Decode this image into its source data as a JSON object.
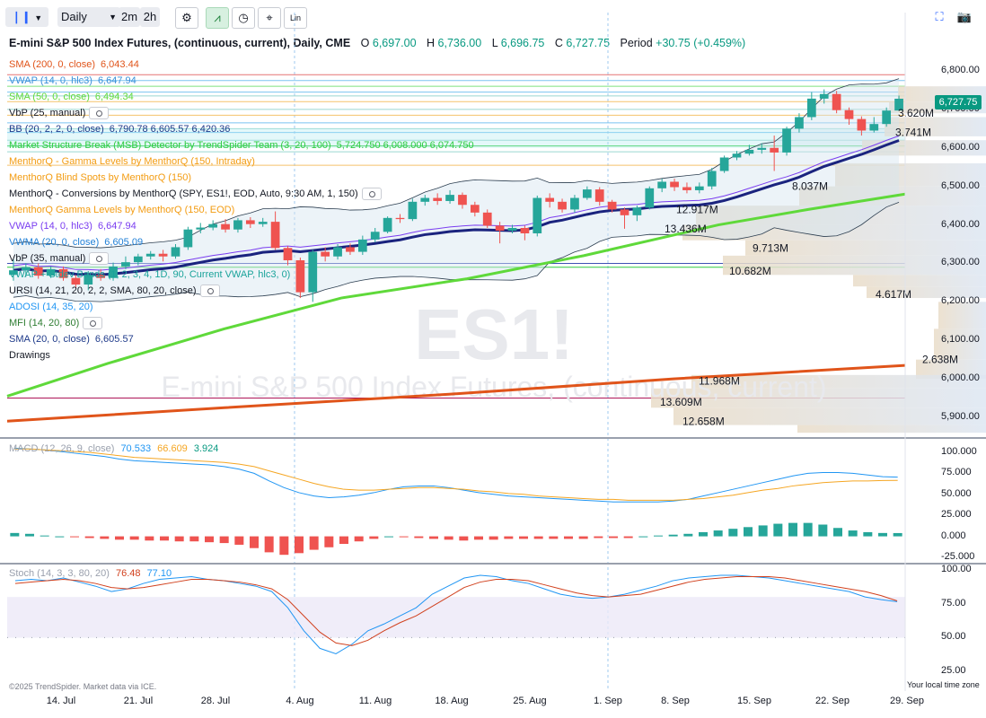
{
  "toolbar": {
    "interval": "Daily",
    "interval_2m": "2m",
    "interval_2h": "2h",
    "scale_label": "Lin"
  },
  "header": {
    "title": "E-mini S&P 500 Index Futures, (continuous, current), Daily, CME",
    "o_label": "O",
    "o_value": "6,697.00",
    "h_label": "H",
    "h_value": "6,736.00",
    "l_label": "L",
    "l_value": "6,696.75",
    "c_label": "C",
    "c_value": "6,727.75",
    "period_label": "Period",
    "period_value": "+30.75 (+0.459%)"
  },
  "indicators": [
    {
      "text": "SMA (200, 0, close)",
      "value": "6,043.44",
      "color": "#e0541a",
      "eye": false
    },
    {
      "text": "VWAP (14, 0, hlc3)",
      "value": "6,647.94",
      "color": "#3a8fd8",
      "eye": false
    },
    {
      "text": "SMA (50, 0, close)",
      "value": "6,494.34",
      "color": "#5fd93a",
      "eye": false
    },
    {
      "text": "VbP (25, manual)",
      "value": "",
      "color": "#131722",
      "eye": true
    },
    {
      "text": "BB (20, 2, 2, 0, close)",
      "value": "6,790.78 6,605.57 6,420.36",
      "color": "#1e3a8a",
      "eye": false
    },
    {
      "text": "Market Structure Break (MSB) Detector by TrendSpider Team (3, 20, 100)",
      "value": "5,724.750 6,008.000 6,074.750",
      "color": "#2ecc40",
      "eye": false
    },
    {
      "text": "MenthorQ - Gamma Levels by MenthorQ (150, Intraday)",
      "value": "",
      "color": "#f39c12",
      "eye": false
    },
    {
      "text": "MenthorQ Blind Spots by MenthorQ (150)",
      "value": "",
      "color": "#f39c12",
      "eye": false
    },
    {
      "text": "MenthorQ - Conversions by MenthorQ (SPY, ES1!, EOD, Auto, 9:30 AM, 1, 150)",
      "value": "",
      "color": "#131722",
      "eye": true
    },
    {
      "text": "MenthorQ Gamma Levels by MenthorQ (150, EOD)",
      "value": "",
      "color": "#f39c12",
      "eye": false
    },
    {
      "text": "VWAP (14, 0, hlc3)",
      "value": "6,647.94",
      "color": "#7a3df0",
      "eye": false
    },
    {
      "text": "VWMA (20, 0, close)",
      "value": "6,605.09",
      "color": "#1f7fd6",
      "eye": false
    },
    {
      "text": "VbP (35, manual)",
      "value": "",
      "color": "#131722",
      "eye": true
    },
    {
      "text": "VWAP + Stdev Bands (1, 2, 3, 4, 1D, 90, Current VWAP, hlc3, 0)",
      "value": "",
      "color": "#1aa39a",
      "eye": false
    },
    {
      "text": "URSI (14, 21, 20, 2, 2, SMA, 80, 20, close)",
      "value": "",
      "color": "#131722",
      "eye": true
    },
    {
      "text": "ADOSI (14, 35, 20)",
      "value": "",
      "color": "#2196f3",
      "eye": false
    },
    {
      "text": "MFI (14, 20, 80)",
      "value": "",
      "color": "#2e7d32",
      "eye": true
    },
    {
      "text": "SMA (20, 0, close)",
      "value": "6,605.57",
      "color": "#1e3a8a",
      "eye": false
    },
    {
      "text": "Drawings",
      "value": "",
      "color": "#131722",
      "eye": false
    }
  ],
  "watermark": {
    "symbol": "ES1!",
    "name": "E-mini S&P 500 Index Futures, (continuous, current)"
  },
  "price_axis": [
    "6,800.00",
    "6,700.00",
    "6,600.00",
    "6,500.00",
    "6,400.00",
    "6,300.00",
    "6,200.00",
    "6,100.00",
    "6,000.00",
    "5,900.00"
  ],
  "last_price": "6,727.75",
  "macd": {
    "label": "MACD (12, 26, 9, close)",
    "v1": "70.533",
    "v2": "66.609",
    "v3": "3.924",
    "axis": [
      "100.000",
      "75.000",
      "50.000",
      "25.000",
      "0.000",
      "-25.000"
    ]
  },
  "stoch": {
    "label": "Stoch (14, 3, 3, 80, 20)",
    "v1": "76.48",
    "v2": "77.10",
    "axis": [
      "100.00",
      "75.00",
      "50.00",
      "25.00"
    ]
  },
  "x_axis": [
    "14. Jul",
    "21. Jul",
    "28. Jul",
    "4. Aug",
    "11. Aug",
    "18. Aug",
    "25. Aug",
    "1. Sep",
    "8. Sep",
    "15. Sep",
    "22. Sep",
    "29. Sep"
  ],
  "footer": {
    "copyright": "©2025 TrendSpider. Market data via ICE.",
    "timezone": "Your local time zone"
  },
  "chart_data": {
    "type": "candlestick",
    "price_range": [
      5850,
      6830
    ],
    "candles": [
      {
        "o": 6270,
        "c": 6282,
        "h": 6310,
        "l": 6255
      },
      {
        "o": 6282,
        "c": 6290,
        "h": 6300,
        "l": 6265
      },
      {
        "o": 6290,
        "c": 6268,
        "h": 6300,
        "l": 6260
      },
      {
        "o": 6268,
        "c": 6285,
        "h": 6292,
        "l": 6262
      },
      {
        "o": 6285,
        "c": 6262,
        "h": 6292,
        "l": 6255
      },
      {
        "o": 6262,
        "c": 6245,
        "h": 6270,
        "l": 6235
      },
      {
        "o": 6245,
        "c": 6270,
        "h": 6280,
        "l": 6230
      },
      {
        "o": 6270,
        "c": 6262,
        "h": 6285,
        "l": 6255
      },
      {
        "o": 6262,
        "c": 6292,
        "h": 6302,
        "l": 6255
      },
      {
        "o": 6292,
        "c": 6303,
        "h": 6318,
        "l": 6285
      },
      {
        "o": 6303,
        "c": 6318,
        "h": 6325,
        "l": 6295
      },
      {
        "o": 6318,
        "c": 6325,
        "h": 6332,
        "l": 6310
      },
      {
        "o": 6325,
        "c": 6318,
        "h": 6335,
        "l": 6305
      },
      {
        "o": 6318,
        "c": 6342,
        "h": 6350,
        "l": 6312
      },
      {
        "o": 6342,
        "c": 6388,
        "h": 6395,
        "l": 6335
      },
      {
        "o": 6388,
        "c": 6393,
        "h": 6405,
        "l": 6378
      },
      {
        "o": 6393,
        "c": 6402,
        "h": 6412,
        "l": 6386
      },
      {
        "o": 6402,
        "c": 6388,
        "h": 6415,
        "l": 6380
      },
      {
        "o": 6388,
        "c": 6412,
        "h": 6418,
        "l": 6380
      },
      {
        "o": 6412,
        "c": 6402,
        "h": 6420,
        "l": 6392
      },
      {
        "o": 6402,
        "c": 6408,
        "h": 6418,
        "l": 6395
      },
      {
        "o": 6408,
        "c": 6340,
        "h": 6435,
        "l": 6335
      },
      {
        "o": 6340,
        "c": 6308,
        "h": 6345,
        "l": 6295
      },
      {
        "o": 6308,
        "c": 6225,
        "h": 6315,
        "l": 6210
      },
      {
        "o": 6225,
        "c": 6330,
        "h": 6335,
        "l": 6200
      },
      {
        "o": 6330,
        "c": 6318,
        "h": 6342,
        "l": 6305
      },
      {
        "o": 6318,
        "c": 6342,
        "h": 6350,
        "l": 6310
      },
      {
        "o": 6342,
        "c": 6330,
        "h": 6352,
        "l": 6322
      },
      {
        "o": 6330,
        "c": 6362,
        "h": 6372,
        "l": 6322
      },
      {
        "o": 6362,
        "c": 6382,
        "h": 6392,
        "l": 6355
      },
      {
        "o": 6382,
        "c": 6418,
        "h": 6422,
        "l": 6378
      },
      {
        "o": 6418,
        "c": 6415,
        "h": 6428,
        "l": 6405
      },
      {
        "o": 6415,
        "c": 6460,
        "h": 6468,
        "l": 6410
      },
      {
        "o": 6460,
        "c": 6470,
        "h": 6478,
        "l": 6450
      },
      {
        "o": 6470,
        "c": 6462,
        "h": 6482,
        "l": 6452
      },
      {
        "o": 6462,
        "c": 6478,
        "h": 6490,
        "l": 6455
      },
      {
        "o": 6478,
        "c": 6452,
        "h": 6484,
        "l": 6442
      },
      {
        "o": 6452,
        "c": 6432,
        "h": 6460,
        "l": 6422
      },
      {
        "o": 6432,
        "c": 6398,
        "h": 6440,
        "l": 6392
      },
      {
        "o": 6398,
        "c": 6385,
        "h": 6408,
        "l": 6352
      },
      {
        "o": 6385,
        "c": 6392,
        "h": 6400,
        "l": 6378
      },
      {
        "o": 6392,
        "c": 6378,
        "h": 6398,
        "l": 6360
      },
      {
        "o": 6378,
        "c": 6470,
        "h": 6476,
        "l": 6370
      },
      {
        "o": 6470,
        "c": 6460,
        "h": 6482,
        "l": 6445
      },
      {
        "o": 6460,
        "c": 6440,
        "h": 6468,
        "l": 6432
      },
      {
        "o": 6440,
        "c": 6470,
        "h": 6478,
        "l": 6432
      },
      {
        "o": 6470,
        "c": 6492,
        "h": 6500,
        "l": 6465
      },
      {
        "o": 6492,
        "c": 6460,
        "h": 6498,
        "l": 6450
      },
      {
        "o": 6460,
        "c": 6440,
        "h": 6465,
        "l": 6432
      },
      {
        "o": 6440,
        "c": 6425,
        "h": 6445,
        "l": 6390
      },
      {
        "o": 6425,
        "c": 6445,
        "h": 6450,
        "l": 6410
      },
      {
        "o": 6445,
        "c": 6495,
        "h": 6500,
        "l": 6440
      },
      {
        "o": 6495,
        "c": 6512,
        "h": 6520,
        "l": 6485
      },
      {
        "o": 6512,
        "c": 6498,
        "h": 6520,
        "l": 6488
      },
      {
        "o": 6498,
        "c": 6490,
        "h": 6510,
        "l": 6482
      },
      {
        "o": 6490,
        "c": 6500,
        "h": 6510,
        "l": 6482
      },
      {
        "o": 6500,
        "c": 6540,
        "h": 6548,
        "l": 6492
      },
      {
        "o": 6540,
        "c": 6575,
        "h": 6580,
        "l": 6535
      },
      {
        "o": 6575,
        "c": 6585,
        "h": 6592,
        "l": 6568
      },
      {
        "o": 6585,
        "c": 6595,
        "h": 6608,
        "l": 6580
      },
      {
        "o": 6595,
        "c": 6600,
        "h": 6612,
        "l": 6585
      },
      {
        "o": 6600,
        "c": 6588,
        "h": 6632,
        "l": 6540
      },
      {
        "o": 6588,
        "c": 6650,
        "h": 6655,
        "l": 6580
      },
      {
        "o": 6650,
        "c": 6680,
        "h": 6690,
        "l": 6640
      },
      {
        "o": 6680,
        "c": 6728,
        "h": 6745,
        "l": 6672
      },
      {
        "o": 6728,
        "c": 6740,
        "h": 6752,
        "l": 6715
      },
      {
        "o": 6740,
        "c": 6698,
        "h": 6748,
        "l": 6690
      },
      {
        "o": 6698,
        "c": 6675,
        "h": 6705,
        "l": 6660
      },
      {
        "o": 6675,
        "c": 6645,
        "h": 6682,
        "l": 6632
      },
      {
        "o": 6645,
        "c": 6662,
        "h": 6680,
        "l": 6640
      },
      {
        "o": 6662,
        "c": 6697,
        "h": 6705,
        "l": 6655
      },
      {
        "o": 6697,
        "c": 6727.75,
        "h": 6736,
        "l": 6696.75
      }
    ],
    "volume_profile": [
      {
        "price": 6690,
        "label": "3.620M"
      },
      {
        "price": 6640,
        "label": "3.741M"
      },
      {
        "price": 6500,
        "label": "8.037M"
      },
      {
        "price": 6440,
        "label": "12.917M"
      },
      {
        "price": 6390,
        "label": "13.436M"
      },
      {
        "price": 6340,
        "label": "9.713M"
      },
      {
        "price": 6280,
        "label": "10.682M"
      },
      {
        "price": 6220,
        "label": "4.617M"
      },
      {
        "price": 6050,
        "label": "2.638M"
      },
      {
        "price": 5995,
        "label": "11.968M"
      },
      {
        "price": 5940,
        "label": "13.609M"
      },
      {
        "price": 5890,
        "label": "12.658M"
      }
    ],
    "macd_range": [
      -30,
      110
    ],
    "macd_line": [
      105,
      104,
      103,
      101,
      99,
      97,
      95,
      92,
      90,
      89,
      88,
      87,
      86,
      85,
      83,
      80,
      75,
      66,
      58,
      52,
      48,
      46,
      47,
      49,
      52,
      56,
      59,
      60,
      60,
      58,
      55,
      52,
      50,
      48,
      47,
      46,
      45,
      44,
      43,
      42,
      41,
      41,
      41,
      41,
      42,
      44,
      48,
      52,
      56,
      60,
      64,
      68,
      72,
      75,
      76,
      76,
      75,
      73,
      71,
      70.5
    ],
    "signal_line": [
      104,
      104,
      103,
      102,
      101,
      100,
      98,
      96,
      94,
      93,
      92,
      91,
      90,
      89,
      88,
      86,
      83,
      78,
      73,
      68,
      63,
      59,
      56,
      55,
      55,
      56,
      57,
      58,
      58,
      57,
      56,
      54,
      53,
      51,
      50,
      48,
      47,
      46,
      45,
      44,
      44,
      43,
      43,
      43,
      43,
      44,
      45,
      47,
      49,
      52,
      55,
      57,
      60,
      62,
      64,
      65,
      66,
      66,
      66.5,
      66.6
    ],
    "macd_hist": [
      4,
      3,
      1,
      0,
      -1,
      -2,
      -3,
      -4,
      -4,
      -5,
      -5,
      -6,
      -6,
      -7,
      -8,
      -10,
      -14,
      -19,
      -22,
      -20,
      -16,
      -13,
      -9,
      -6,
      -3,
      0,
      -1,
      -2,
      -3,
      -4,
      -5,
      -4,
      -4,
      -3,
      -3,
      -3,
      -3,
      -3,
      -3,
      -2,
      -2,
      -2,
      0,
      1,
      2,
      3,
      5,
      7,
      9,
      11,
      13,
      15,
      16,
      16,
      14,
      10,
      7,
      5,
      4,
      3.9
    ],
    "stoch_range": [
      20,
      105
    ],
    "stoch_k": [
      92,
      93,
      92,
      94,
      91,
      88,
      84,
      86,
      90,
      93,
      94,
      95,
      93,
      92,
      90,
      88,
      84,
      72,
      55,
      42,
      38,
      45,
      55,
      60,
      66,
      72,
      82,
      88,
      94,
      96,
      95,
      92,
      90,
      86,
      82,
      80,
      79,
      80,
      82,
      85,
      88,
      92,
      94,
      95,
      96,
      96,
      95,
      94,
      92,
      90,
      88,
      86,
      84,
      80,
      78,
      76.5
    ],
    "stoch_d": [
      90,
      91,
      92,
      93,
      92,
      90,
      87,
      86,
      87,
      89,
      91,
      93,
      93,
      92,
      91,
      89,
      86,
      78,
      66,
      54,
      46,
      44,
      48,
      55,
      61,
      66,
      73,
      80,
      87,
      91,
      93,
      93,
      92,
      89,
      86,
      83,
      81,
      80,
      81,
      82,
      85,
      88,
      91,
      93,
      94,
      95,
      95,
      95,
      94,
      92,
      90,
      88,
      86,
      84,
      81,
      77.1
    ],
    "series": [
      {
        "name": "SMA (200, 0, close)",
        "color": "#e0541a"
      },
      {
        "name": "SMA (50, 0, close)",
        "color": "#5fd93a"
      },
      {
        "name": "SMA (20, 0, close)",
        "color": "#1e3a8a"
      },
      {
        "name": "BB (20, 2, 2, 0, close)",
        "color": "#1e3a8a"
      }
    ]
  }
}
